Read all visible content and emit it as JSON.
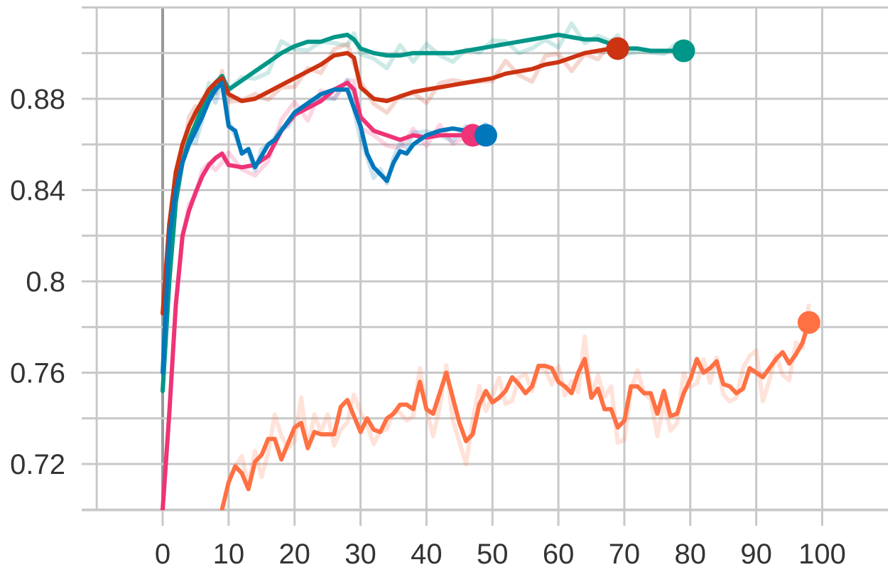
{
  "chart_data": {
    "type": "line",
    "title": "",
    "xlabel": "",
    "ylabel": "",
    "xlim": [
      -10,
      110
    ],
    "ylim": [
      0.7,
      0.91
    ],
    "x_ticks": [
      0,
      10,
      20,
      30,
      40,
      50,
      60,
      70,
      80,
      90,
      100
    ],
    "x_tick_labels": [
      "0",
      "10",
      "20",
      "30",
      "40",
      "50",
      "60",
      "70",
      "80",
      "90",
      "100"
    ],
    "y_ticks": [
      0.72,
      0.76,
      0.8,
      0.84,
      0.88
    ],
    "y_tick_labels": [
      "0.72",
      "0.76",
      "0.8",
      "0.84",
      "0.88"
    ],
    "grid": true,
    "legend": "none",
    "series": [
      {
        "color": "#009688",
        "x": [
          0,
          1,
          2,
          3,
          4,
          5,
          6,
          7,
          8,
          9,
          10,
          12,
          14,
          16,
          18,
          20,
          22,
          24,
          26,
          28,
          29,
          30,
          32,
          34,
          36,
          38,
          40,
          42,
          44,
          46,
          48,
          50,
          52,
          54,
          56,
          58,
          60,
          62,
          64,
          66,
          68,
          69,
          70,
          72,
          74,
          76,
          78,
          79
        ],
        "y": [
          0.752,
          0.8,
          0.835,
          0.852,
          0.862,
          0.869,
          0.876,
          0.882,
          0.887,
          0.89,
          0.884,
          0.888,
          0.892,
          0.896,
          0.9,
          0.903,
          0.905,
          0.905,
          0.907,
          0.908,
          0.906,
          0.902,
          0.9,
          0.899,
          0.899,
          0.9,
          0.9,
          0.9,
          0.9,
          0.901,
          0.902,
          0.903,
          0.904,
          0.905,
          0.906,
          0.907,
          0.908,
          0.907,
          0.906,
          0.906,
          0.904,
          0.903,
          0.902,
          0.902,
          0.901,
          0.901,
          0.901,
          0.901
        ]
      },
      {
        "color": "#cc3311",
        "x": [
          0,
          1,
          2,
          3,
          4,
          5,
          6,
          7,
          8,
          9,
          10,
          12,
          14,
          16,
          18,
          20,
          22,
          24,
          26,
          28,
          29,
          30,
          32,
          34,
          36,
          38,
          40,
          42,
          44,
          46,
          48,
          50,
          52,
          54,
          56,
          58,
          60,
          62,
          64,
          66,
          68,
          69
        ],
        "y": [
          0.786,
          0.825,
          0.848,
          0.86,
          0.868,
          0.874,
          0.879,
          0.884,
          0.887,
          0.889,
          0.882,
          0.879,
          0.88,
          0.883,
          0.886,
          0.889,
          0.892,
          0.895,
          0.899,
          0.9,
          0.898,
          0.885,
          0.88,
          0.879,
          0.881,
          0.883,
          0.884,
          0.885,
          0.886,
          0.887,
          0.888,
          0.889,
          0.891,
          0.892,
          0.893,
          0.895,
          0.896,
          0.898,
          0.9,
          0.901,
          0.902,
          0.902
        ]
      },
      {
        "color": "#ee3377",
        "x": [
          0,
          1,
          2,
          3,
          4,
          5,
          6,
          7,
          8,
          9,
          10,
          12,
          14,
          16,
          18,
          20,
          22,
          24,
          26,
          28,
          29,
          30,
          32,
          34,
          36,
          38,
          40,
          42,
          44,
          46,
          47
        ],
        "y": [
          0.7,
          0.742,
          0.79,
          0.82,
          0.831,
          0.839,
          0.846,
          0.851,
          0.854,
          0.856,
          0.851,
          0.85,
          0.851,
          0.855,
          0.866,
          0.873,
          0.876,
          0.879,
          0.884,
          0.887,
          0.884,
          0.872,
          0.866,
          0.864,
          0.862,
          0.864,
          0.863,
          0.864,
          0.864,
          0.864,
          0.864
        ]
      },
      {
        "color": "#0077bb",
        "x": [
          0,
          1,
          2,
          3,
          4,
          5,
          6,
          7,
          8,
          9,
          10,
          11,
          12,
          13,
          14,
          15,
          16,
          17,
          18,
          19,
          20,
          22,
          24,
          26,
          28,
          30,
          31,
          32,
          33,
          34,
          35,
          36,
          37,
          38,
          39,
          40,
          42,
          44,
          46,
          48,
          49
        ],
        "y": [
          0.76,
          0.82,
          0.84,
          0.852,
          0.86,
          0.866,
          0.872,
          0.879,
          0.884,
          0.887,
          0.868,
          0.866,
          0.856,
          0.858,
          0.85,
          0.855,
          0.86,
          0.862,
          0.866,
          0.87,
          0.874,
          0.878,
          0.882,
          0.884,
          0.884,
          0.868,
          0.856,
          0.85,
          0.847,
          0.844,
          0.852,
          0.857,
          0.856,
          0.86,
          0.862,
          0.864,
          0.866,
          0.867,
          0.866,
          0.864,
          0.864
        ]
      },
      {
        "color": "#ff7043",
        "x": [
          9,
          10,
          11,
          12,
          13,
          14,
          15,
          16,
          17,
          18,
          19,
          20,
          21,
          22,
          23,
          24,
          25,
          26,
          27,
          28,
          29,
          30,
          31,
          32,
          33,
          34,
          35,
          36,
          37,
          38,
          39,
          40,
          41,
          42,
          43,
          44,
          45,
          46,
          47,
          48,
          49,
          50,
          51,
          52,
          53,
          54,
          55,
          56,
          57,
          58,
          59,
          60,
          61,
          62,
          63,
          64,
          65,
          66,
          67,
          68,
          69,
          70,
          71,
          72,
          73,
          74,
          75,
          76,
          77,
          78,
          79,
          80,
          81,
          82,
          83,
          84,
          85,
          86,
          87,
          88,
          89,
          90,
          91,
          92,
          93,
          94,
          95,
          96,
          97,
          98
        ],
        "y": [
          0.7,
          0.712,
          0.719,
          0.716,
          0.709,
          0.721,
          0.724,
          0.731,
          0.731,
          0.722,
          0.729,
          0.736,
          0.738,
          0.727,
          0.734,
          0.733,
          0.733,
          0.733,
          0.745,
          0.748,
          0.741,
          0.734,
          0.74,
          0.735,
          0.734,
          0.74,
          0.742,
          0.746,
          0.746,
          0.744,
          0.756,
          0.744,
          0.742,
          0.751,
          0.76,
          0.749,
          0.738,
          0.73,
          0.733,
          0.746,
          0.752,
          0.747,
          0.749,
          0.752,
          0.758,
          0.755,
          0.751,
          0.754,
          0.763,
          0.763,
          0.762,
          0.756,
          0.754,
          0.751,
          0.76,
          0.766,
          0.749,
          0.753,
          0.744,
          0.744,
          0.736,
          0.739,
          0.754,
          0.754,
          0.751,
          0.751,
          0.742,
          0.752,
          0.741,
          0.742,
          0.751,
          0.757,
          0.766,
          0.76,
          0.762,
          0.765,
          0.755,
          0.754,
          0.751,
          0.753,
          0.762,
          0.76,
          0.758,
          0.762,
          0.766,
          0.769,
          0.764,
          0.768,
          0.773,
          0.782
        ]
      }
    ]
  }
}
